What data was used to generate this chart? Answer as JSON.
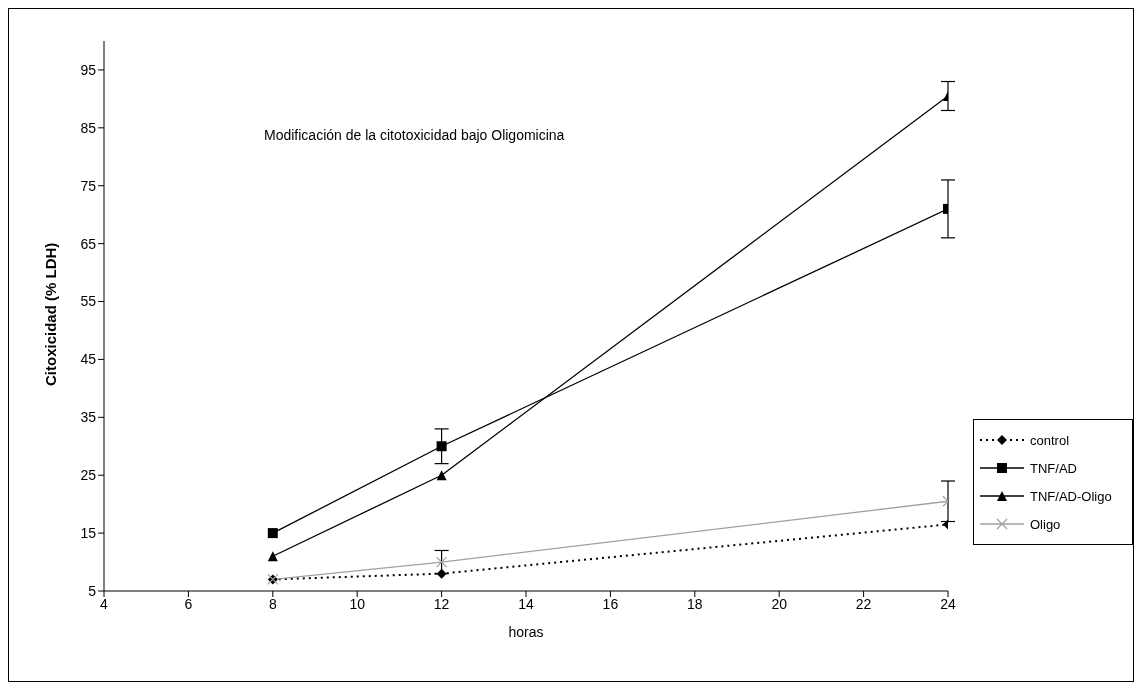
{
  "chart_data": {
    "type": "line",
    "title": "Modificación de la citotoxicidad bajo Oligomicina",
    "xlabel": "horas",
    "ylabel": "Citoxicidad (% LDH)",
    "x": [
      8,
      12,
      24
    ],
    "series": [
      {
        "name": "control",
        "color": "#000000",
        "values": [
          7,
          8,
          16.5
        ],
        "marker": "diamond",
        "line_style": "dotted"
      },
      {
        "name": "TNF/AD",
        "color": "#000000",
        "values": [
          15,
          30,
          71
        ],
        "errors": [
          null,
          3,
          5
        ],
        "marker": "square",
        "line_style": "solid"
      },
      {
        "name": "TNF/AD-Oligo",
        "color": "#000000",
        "values": [
          11,
          25,
          90.5
        ],
        "errors": [
          null,
          null,
          2.5
        ],
        "marker": "triangle",
        "line_style": "solid"
      },
      {
        "name": "Oligo",
        "color": "#a0a0a0",
        "values": [
          7,
          10,
          20.5
        ],
        "errors": [
          null,
          2,
          3.5
        ],
        "marker": "cross",
        "line_style": "solid"
      }
    ],
    "xlim": [
      4,
      24
    ],
    "xticks": [
      4,
      6,
      8,
      10,
      12,
      14,
      16,
      18,
      20,
      22,
      24
    ],
    "ylim": [
      5,
      100
    ],
    "yticks": [
      5,
      15,
      25,
      35,
      45,
      55,
      65,
      75,
      85,
      95
    ],
    "grid": false,
    "legend": "right"
  }
}
